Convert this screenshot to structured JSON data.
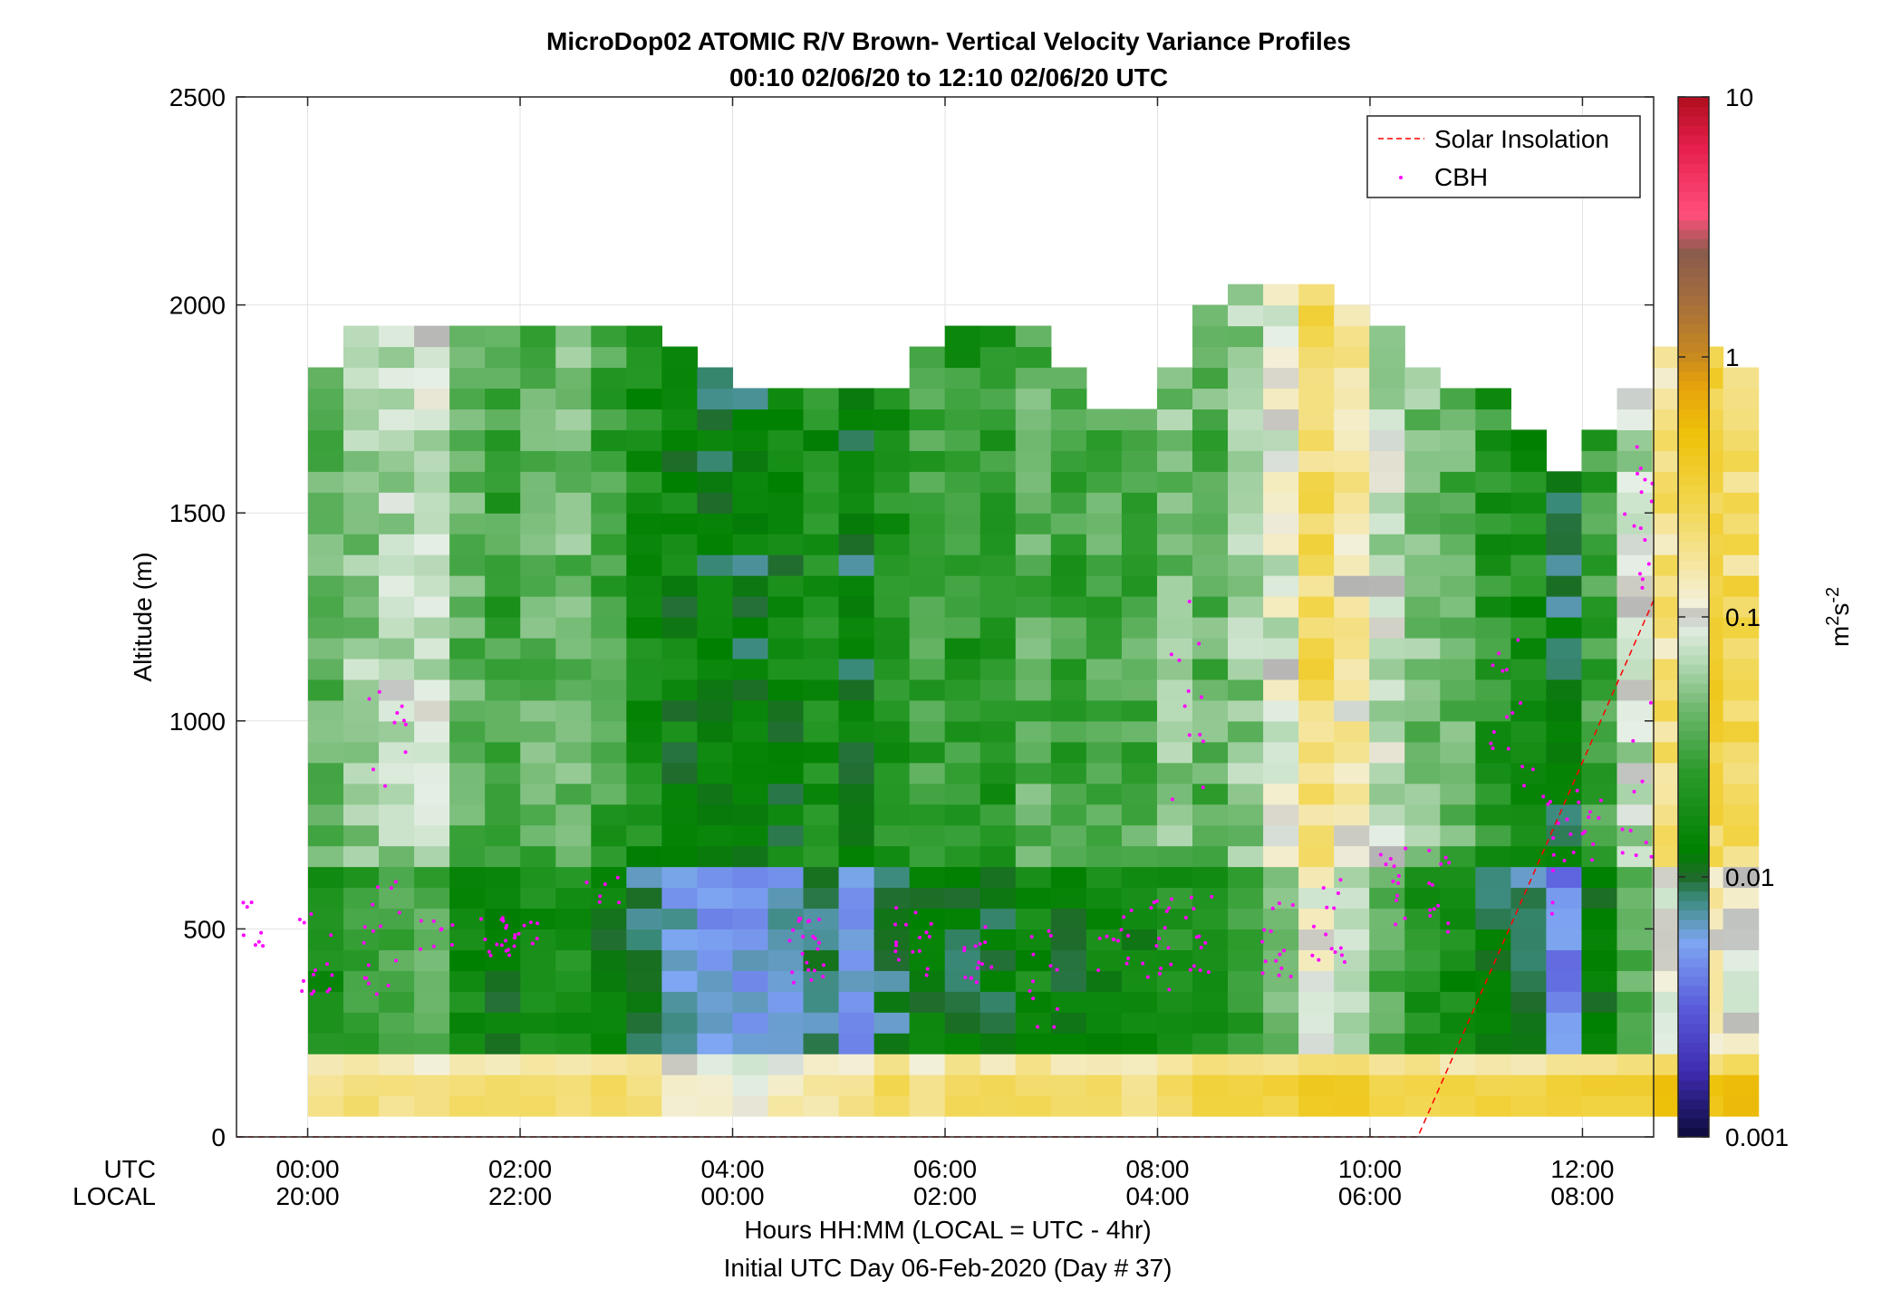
{
  "chart_data": {
    "type": "heatmap",
    "title": "MicroDop02 ATOMIC R/V Brown- Vertical Velocity Variance Profiles",
    "subtitle": "00:10 02/06/20 to 12:10 02/06/20  UTC",
    "ylabel": "Altitude (m)",
    "xlabel": "Hours HH:MM  (LOCAL = UTC - 4hr)",
    "xlabel2": "Initial UTC Day 06-Feb-2020 (Day # 37)",
    "xrow_label_utc": "UTC",
    "xrow_label_local": "LOCAL",
    "colorbar_label": "m2s-2",
    "xlim_hours_utc": [
      -0.67,
      12.67
    ],
    "ylim": [
      0,
      2500
    ],
    "yticks": [
      0,
      500,
      1000,
      1500,
      2000,
      2500
    ],
    "ytick_labels": [
      "0",
      "500",
      "1000",
      "1500",
      "2000",
      "2500"
    ],
    "xticks_hours": [
      0,
      2,
      4,
      6,
      8,
      10,
      12
    ],
    "xtick_labels_utc": [
      "00:00",
      "02:00",
      "04:00",
      "06:00",
      "08:00",
      "10:00",
      "12:00"
    ],
    "xtick_labels_local": [
      "20:00",
      "22:00",
      "00:00",
      "02:00",
      "04:00",
      "06:00",
      "08:00"
    ],
    "colorbar": {
      "scale": "log",
      "range": [
        0.001,
        10
      ],
      "ticks": [
        0.001,
        0.01,
        0.1,
        1,
        10
      ],
      "tick_labels": [
        "0.001",
        "0.01",
        "0.1",
        "1",
        "10"
      ]
    },
    "grid": true,
    "legend_position": "top-right",
    "legend": [
      {
        "label": "Solar Insolation",
        "color": "#ff0000",
        "style": "dashed"
      },
      {
        "label": "CBH",
        "color": "#ff00ff",
        "style": "dots"
      }
    ],
    "profiles": {
      "time_start_hours": 0.17,
      "time_step_hours": 0.333,
      "altitude_start_m": 75,
      "altitude_step_m": 50,
      "columns": [
        {
          "top": 1850,
          "mid": 0.04,
          "surface": 0.18
        },
        {
          "top": 1950,
          "mid": 0.06,
          "surface": 0.2
        },
        {
          "top": 1950,
          "mid": 0.07,
          "surface": 0.2
        },
        {
          "top": 1950,
          "mid": 0.08,
          "surface": 0.2
        },
        {
          "top": 1950,
          "mid": 0.04,
          "surface": 0.22
        },
        {
          "top": 1950,
          "mid": 0.03,
          "surface": 0.22
        },
        {
          "top": 1950,
          "mid": 0.04,
          "surface": 0.22
        },
        {
          "top": 1950,
          "mid": 0.045,
          "surface": 0.22
        },
        {
          "top": 1950,
          "mid": 0.03,
          "surface": 0.24
        },
        {
          "top": 1950,
          "mid": 0.02,
          "surface": 0.22
        },
        {
          "top": 1900,
          "mid": 0.015,
          "surface": 0.14
        },
        {
          "top": 1850,
          "mid": 0.012,
          "surface": 0.12
        },
        {
          "top": 1800,
          "mid": 0.012,
          "surface": 0.1
        },
        {
          "top": 1800,
          "mid": 0.015,
          "surface": 0.14
        },
        {
          "top": 1800,
          "mid": 0.02,
          "surface": 0.16
        },
        {
          "top": 1800,
          "mid": 0.012,
          "surface": 0.18
        },
        {
          "top": 1800,
          "mid": 0.02,
          "surface": 0.24
        },
        {
          "top": 1900,
          "mid": 0.03,
          "surface": 0.16
        },
        {
          "top": 1950,
          "mid": 0.025,
          "surface": 0.24
        },
        {
          "top": 1950,
          "mid": 0.025,
          "surface": 0.26
        },
        {
          "top": 1950,
          "mid": 0.04,
          "surface": 0.26
        },
        {
          "top": 1850,
          "mid": 0.03,
          "surface": 0.26
        },
        {
          "top": 1750,
          "mid": 0.035,
          "surface": 0.24
        },
        {
          "top": 1750,
          "mid": 0.035,
          "surface": 0.16
        },
        {
          "top": 1850,
          "mid": 0.05,
          "surface": 0.24
        },
        {
          "top": 2000,
          "mid": 0.04,
          "surface": 0.3
        },
        {
          "top": 2050,
          "mid": 0.06,
          "surface": 0.3
        },
        {
          "top": 2050,
          "mid": 0.1,
          "surface": 0.3
        },
        {
          "top": 2050,
          "mid": 0.25,
          "surface": 0.4
        },
        {
          "top": 2000,
          "mid": 0.15,
          "surface": 0.35
        },
        {
          "top": 1950,
          "mid": 0.08,
          "surface": 0.3
        },
        {
          "top": 1850,
          "mid": 0.05,
          "surface": 0.3
        },
        {
          "top": 1800,
          "mid": 0.04,
          "surface": 0.3
        },
        {
          "top": 1800,
          "mid": 0.025,
          "surface": 0.3
        },
        {
          "top": 1700,
          "mid": 0.02,
          "surface": 0.3
        },
        {
          "top": 1600,
          "mid": 0.01,
          "surface": 0.3
        },
        {
          "top": 1700,
          "mid": 0.03,
          "surface": 0.35
        },
        {
          "top": 1800,
          "mid": 0.08,
          "surface": 0.35
        },
        {
          "top": 1900,
          "mid": 0.2,
          "surface": 0.5
        },
        {
          "top": 1900,
          "mid": 0.3,
          "surface": 0.5
        },
        {
          "top": 1850,
          "mid": 0.25,
          "surface": 0.5
        }
      ]
    },
    "solar_insolation": [
      {
        "time_hours": -0.67,
        "altitude_m": 0
      },
      {
        "time_hours": 10.45,
        "altitude_m": 0
      },
      {
        "time_hours": 12.67,
        "altitude_m": 1290
      }
    ],
    "cbh_clusters": [
      {
        "time_hours": -0.55,
        "center_m": 500,
        "spread_m": 70,
        "count": 10
      },
      {
        "time_hours": 0.1,
        "center_m": 430,
        "spread_m": 110,
        "count": 14
      },
      {
        "time_hours": 0.7,
        "center_m": 480,
        "spread_m": 150,
        "count": 16
      },
      {
        "time_hours": 0.75,
        "center_m": 950,
        "spread_m": 160,
        "count": 10
      },
      {
        "time_hours": 1.2,
        "center_m": 480,
        "spread_m": 60,
        "count": 8
      },
      {
        "time_hours": 1.8,
        "center_m": 480,
        "spread_m": 50,
        "count": 10
      },
      {
        "time_hours": 2.0,
        "center_m": 490,
        "spread_m": 40,
        "count": 14
      },
      {
        "time_hours": 2.8,
        "center_m": 620,
        "spread_m": 60,
        "count": 6
      },
      {
        "time_hours": 4.7,
        "center_m": 440,
        "spread_m": 90,
        "count": 22
      },
      {
        "time_hours": 5.7,
        "center_m": 470,
        "spread_m": 90,
        "count": 16
      },
      {
        "time_hours": 6.3,
        "center_m": 450,
        "spread_m": 80,
        "count": 14
      },
      {
        "time_hours": 6.9,
        "center_m": 380,
        "spread_m": 120,
        "count": 12
      },
      {
        "time_hours": 7.6,
        "center_m": 470,
        "spread_m": 90,
        "count": 12
      },
      {
        "time_hours": 8.0,
        "center_m": 470,
        "spread_m": 120,
        "count": 16
      },
      {
        "time_hours": 8.3,
        "center_m": 1050,
        "spread_m": 250,
        "count": 12
      },
      {
        "time_hours": 8.4,
        "center_m": 480,
        "spread_m": 100,
        "count": 12
      },
      {
        "time_hours": 9.1,
        "center_m": 480,
        "spread_m": 100,
        "count": 14
      },
      {
        "time_hours": 9.6,
        "center_m": 520,
        "spread_m": 100,
        "count": 14
      },
      {
        "time_hours": 10.2,
        "center_m": 600,
        "spread_m": 120,
        "count": 12
      },
      {
        "time_hours": 10.7,
        "center_m": 600,
        "spread_m": 110,
        "count": 12
      },
      {
        "time_hours": 11.3,
        "center_m": 1050,
        "spread_m": 150,
        "count": 12
      },
      {
        "time_hours": 11.6,
        "center_m": 700,
        "spread_m": 200,
        "count": 12
      },
      {
        "time_hours": 12.0,
        "center_m": 800,
        "spread_m": 150,
        "count": 14
      },
      {
        "time_hours": 12.5,
        "center_m": 1500,
        "spread_m": 180,
        "count": 16
      },
      {
        "time_hours": 12.55,
        "center_m": 850,
        "spread_m": 200,
        "count": 14
      }
    ]
  }
}
